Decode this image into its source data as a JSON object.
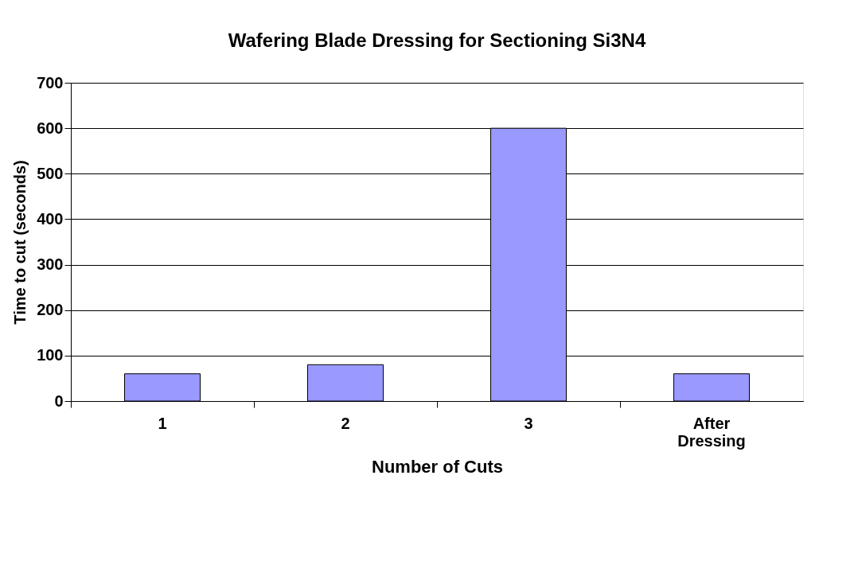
{
  "chart_data": {
    "type": "bar",
    "title": "Wafering Blade Dressing for Sectioning Si3N4",
    "xlabel": "Number of Cuts",
    "ylabel": "Time to cut (seconds)",
    "categories": [
      "1",
      "2",
      "3",
      "After Dressing"
    ],
    "values": [
      60,
      80,
      600,
      60
    ],
    "color": "#9999ff",
    "ylim": [
      0,
      700
    ],
    "yticks": [
      0,
      100,
      200,
      300,
      400,
      500,
      600,
      700
    ],
    "grid": "y"
  }
}
